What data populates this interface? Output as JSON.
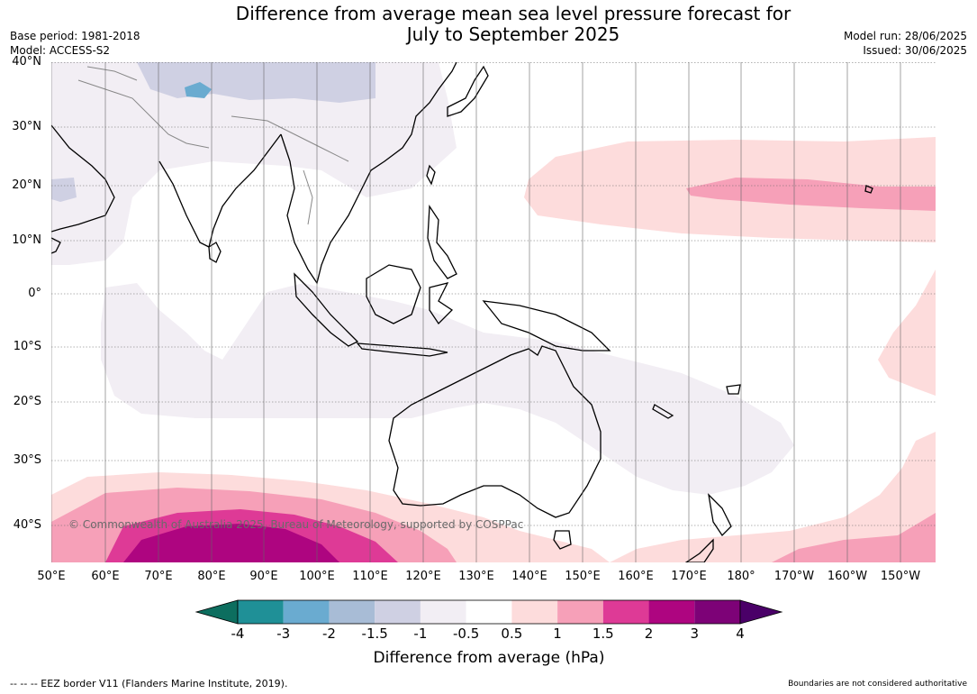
{
  "title_line1": "Difference from average mean sea level pressure forecast for",
  "title_line2": "July to September 2025",
  "base_period": "Base period: 1981-2018",
  "model": "Model: ACCESS-S2",
  "model_run": "Model run: 28/06/2025",
  "issued": "Issued: 30/06/2025",
  "lat_labels": [
    "40°N",
    "30°N",
    "20°N",
    "10°N",
    "0°",
    "10°S",
    "20°S",
    "30°S",
    "40°S"
  ],
  "lon_labels": [
    "50°E",
    "60°E",
    "70°E",
    "80°E",
    "90°E",
    "100°E",
    "110°E",
    "120°E",
    "130°E",
    "140°E",
    "150°E",
    "160°E",
    "170°E",
    "180°",
    "170°W",
    "160°W",
    "150°W"
  ],
  "colorbar": {
    "ticks": [
      "-4",
      "-3",
      "-2",
      "-1.5",
      "-1",
      "-0.5",
      "0.5",
      "1",
      "1.5",
      "2",
      "3",
      "4"
    ],
    "colors": [
      "#0d6e5f",
      "#1f9097",
      "#6aabd0",
      "#a8bcd6",
      "#cfd0e3",
      "#f2eef4",
      "#ffffff",
      "#fddcdc",
      "#f6a0b8",
      "#de3a96",
      "#ae0580",
      "#7d0277",
      "#4a0068"
    ],
    "label": "Difference from average (hPa)"
  },
  "copyright": "© Commonwealth of Australia 2025, Bureau of Meteorology, supported by COSPPac",
  "footer_left": "--  --  -- EEZ border V11 (Flanders Marine Institute, 2019).",
  "footer_right": "Boundaries are not considered authoritative"
}
